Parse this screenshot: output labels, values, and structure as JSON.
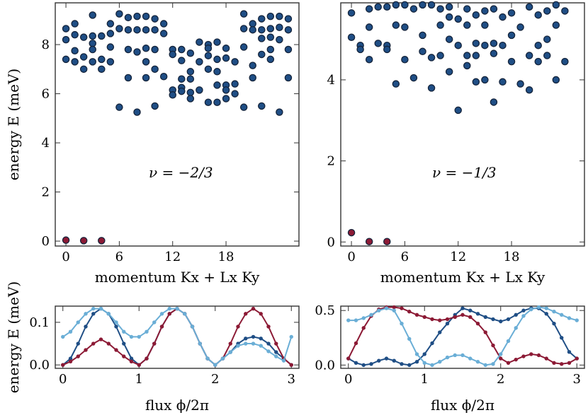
{
  "colors": {
    "blue": "#1f4e85",
    "red": "#8c1a35",
    "light": "#6aaed6",
    "edge": "#14233a"
  },
  "labels": {
    "ylabel_top": "energy E (meV)",
    "ylabel_bottom": "energy E (meV)",
    "xlabel_momentum": "momentum Kx + Lx Ky",
    "xlabel_flux": "flux ϕ/2π",
    "nu_left": "ν = −2/3",
    "nu_right": "ν = −1/3"
  },
  "chart_data": [
    {
      "type": "scatter",
      "panel": "top-left",
      "xlabel": "momentum Kx + Lx Ky",
      "ylabel": "energy E (meV)",
      "annotation": "ν = −2/3",
      "xlim": [
        -1,
        24
      ],
      "ylim": [
        -0.2,
        9.7
      ],
      "xticks": [
        0,
        6,
        12,
        18
      ],
      "yticks": [
        0,
        2,
        4,
        6,
        8
      ],
      "series": [
        {
          "color": "red",
          "points": [
            [
              0,
              0.04
            ],
            [
              2,
              0.02
            ],
            [
              4,
              0.02
            ]
          ]
        },
        {
          "color": "blue",
          "points": [
            [
              0,
              8.65
            ],
            [
              0,
              8.2
            ],
            [
              0,
              7.4
            ],
            [
              1,
              8.85
            ],
            [
              1,
              8.4
            ],
            [
              1,
              7.75
            ],
            [
              1,
              7.3
            ],
            [
              2,
              8.3
            ],
            [
              2,
              7.5
            ],
            [
              2,
              7.0
            ],
            [
              3,
              9.2
            ],
            [
              3,
              8.35
            ],
            [
              3,
              8.05
            ],
            [
              3,
              7.8
            ],
            [
              3,
              7.3
            ],
            [
              4,
              8.35
            ],
            [
              4,
              7.4
            ],
            [
              4,
              7.0
            ],
            [
              5,
              8.85
            ],
            [
              5,
              8.45
            ],
            [
              5,
              7.9
            ],
            [
              5,
              7.3
            ],
            [
              6,
              9.25
            ],
            [
              6,
              8.65
            ],
            [
              6,
              5.45
            ],
            [
              7,
              9.1
            ],
            [
              7,
              8.6
            ],
            [
              7,
              7.8
            ],
            [
              7,
              6.65
            ],
            [
              8,
              9.15
            ],
            [
              8,
              8.6
            ],
            [
              8,
              7.7
            ],
            [
              8,
              5.25
            ],
            [
              9,
              9.15
            ],
            [
              9,
              8.6
            ],
            [
              9,
              7.85
            ],
            [
              9,
              7.3
            ],
            [
              9,
              6.65
            ],
            [
              10,
              9.05
            ],
            [
              10,
              8.6
            ],
            [
              10,
              7.8
            ],
            [
              10,
              7.0
            ],
            [
              10,
              5.5
            ],
            [
              11,
              8.85
            ],
            [
              11,
              8.45
            ],
            [
              11,
              6.7
            ],
            [
              12,
              7.8
            ],
            [
              12,
              7.6
            ],
            [
              12,
              6.15
            ],
            [
              12,
              5.95
            ],
            [
              13,
              7.8
            ],
            [
              13,
              7.35
            ],
            [
              13,
              6.6
            ],
            [
              13,
              6.25
            ],
            [
              13,
              6.1
            ],
            [
              14,
              7.65
            ],
            [
              14,
              6.9
            ],
            [
              14,
              6.6
            ],
            [
              14,
              6.05
            ],
            [
              14,
              5.8
            ],
            [
              15,
              8.1
            ],
            [
              15,
              7.3
            ],
            [
              15,
              6.15
            ],
            [
              16,
              8.0
            ],
            [
              16,
              7.85
            ],
            [
              16,
              7.55
            ],
            [
              16,
              7.0
            ],
            [
              16,
              5.65
            ],
            [
              17,
              8.1
            ],
            [
              17,
              7.4
            ],
            [
              17,
              6.9
            ],
            [
              17,
              6.35
            ],
            [
              17,
              5.65
            ],
            [
              18,
              7.85
            ],
            [
              18,
              7.45
            ],
            [
              18,
              6.35
            ],
            [
              18,
              6.15
            ],
            [
              18,
              5.8
            ],
            [
              19,
              7.3
            ],
            [
              19,
              6.4
            ],
            [
              19,
              6.0
            ],
            [
              20,
              9.25
            ],
            [
              20,
              8.65
            ],
            [
              20,
              7.9
            ],
            [
              20,
              5.45
            ],
            [
              21,
              8.85
            ],
            [
              21,
              8.6
            ],
            [
              21,
              7.15
            ],
            [
              21,
              6.65
            ],
            [
              22,
              9.05
            ],
            [
              22,
              8.6
            ],
            [
              22,
              8.25
            ],
            [
              22,
              7.6
            ],
            [
              22,
              5.5
            ],
            [
              23,
              9.15
            ],
            [
              23,
              8.65
            ],
            [
              23,
              8.3
            ],
            [
              23,
              7.8
            ],
            [
              23,
              7.4
            ],
            [
              24,
              9.15
            ],
            [
              24,
              8.7
            ],
            [
              24,
              8.2
            ],
            [
              24,
              5.25
            ],
            [
              25,
              9.05
            ],
            [
              25,
              8.6
            ],
            [
              25,
              7.8
            ],
            [
              25,
              6.65
            ]
          ]
        }
      ]
    },
    {
      "type": "scatter",
      "panel": "top-right",
      "xlabel": "momentum Kx + Lx Ky",
      "annotation": "ν = −1/3",
      "xlim": [
        -1,
        24
      ],
      "ylim": [
        -0.1,
        5.9
      ],
      "xticks": [
        0,
        6,
        12,
        18
      ],
      "yticks": [
        0,
        2,
        4
      ],
      "series": [
        {
          "color": "red",
          "points": [
            [
              0,
              0.23
            ],
            [
              2,
              0.01
            ],
            [
              4,
              0.01
            ]
          ]
        },
        {
          "color": "blue",
          "points": [
            [
              0,
              5.65
            ],
            [
              0,
              5.05
            ],
            [
              1,
              4.85
            ],
            [
              1,
              4.75
            ],
            [
              2,
              5.75
            ],
            [
              2,
              5.3
            ],
            [
              2,
              4.5
            ],
            [
              3,
              5.8
            ],
            [
              3,
              4.9
            ],
            [
              4,
              5.8
            ],
            [
              4,
              4.85
            ],
            [
              4,
              4.75
            ],
            [
              5,
              5.85
            ],
            [
              5,
              5.35
            ],
            [
              5,
              3.9
            ],
            [
              6,
              5.85
            ],
            [
              6,
              5.3
            ],
            [
              6,
              4.5
            ],
            [
              7,
              5.75
            ],
            [
              7,
              4.05
            ],
            [
              8,
              5.85
            ],
            [
              8,
              5.1
            ],
            [
              8,
              4.7
            ],
            [
              9,
              5.85
            ],
            [
              9,
              4.55
            ],
            [
              9,
              3.8
            ],
            [
              10,
              5.75
            ],
            [
              10,
              5.35
            ],
            [
              10,
              4.6
            ],
            [
              11,
              5.8
            ],
            [
              11,
              5.55
            ],
            [
              11,
              5.0
            ],
            [
              11,
              4.2
            ],
            [
              12,
              5.5
            ],
            [
              12,
              4.85
            ],
            [
              12,
              3.25
            ],
            [
              13,
              5.75
            ],
            [
              13,
              5.35
            ],
            [
              13,
              4.6
            ],
            [
              13,
              4.35
            ],
            [
              14,
              5.6
            ],
            [
              14,
              4.9
            ],
            [
              14,
              4.6
            ],
            [
              14,
              3.95
            ],
            [
              15,
              5.7
            ],
            [
              15,
              5.35
            ],
            [
              15,
              4.85
            ],
            [
              15,
              4.0
            ],
            [
              16,
              5.75
            ],
            [
              16,
              4.9
            ],
            [
              16,
              4.65
            ],
            [
              16,
              3.45
            ],
            [
              17,
              5.55
            ],
            [
              17,
              4.85
            ],
            [
              17,
              3.95
            ],
            [
              18,
              5.65
            ],
            [
              18,
              5.1
            ],
            [
              18,
              4.45
            ],
            [
              19,
              5.3
            ],
            [
              19,
              3.9
            ],
            [
              20,
              5.8
            ],
            [
              20,
              4.6
            ],
            [
              20,
              3.75
            ],
            [
              21,
              5.6
            ],
            [
              21,
              4.85
            ],
            [
              21,
              4.45
            ],
            [
              22,
              5.7
            ],
            [
              22,
              5.0
            ],
            [
              22,
              4.6
            ],
            [
              23,
              5.85
            ],
            [
              23,
              5.35
            ],
            [
              23,
              4.0
            ],
            [
              24,
              5.7
            ],
            [
              24,
              4.45
            ]
          ]
        }
      ]
    },
    {
      "type": "line",
      "panel": "bottom-left",
      "xlabel": "flux ϕ/2π",
      "ylabel": "energy E (meV)",
      "xlim": [
        -0.1,
        3.1
      ],
      "ylim": [
        -0.008,
        0.138
      ],
      "xticks": [
        0,
        1,
        2,
        3
      ],
      "yticks": [
        0.0,
        0.1
      ],
      "ytick_labels": [
        "0.0",
        "0.1"
      ],
      "x": [
        0,
        0.1,
        0.2,
        0.3,
        0.4,
        0.5,
        0.6,
        0.7,
        0.8,
        0.9,
        1,
        1.1,
        1.2,
        1.3,
        1.4,
        1.5,
        1.6,
        1.7,
        1.8,
        1.9,
        2,
        2.1,
        2.2,
        2.3,
        2.4,
        2.5,
        2.6,
        2.7,
        2.8,
        2.9,
        3
      ],
      "series": [
        {
          "color": "blue",
          "values": [
            0,
            0.015,
            0.05,
            0.09,
            0.12,
            0.132,
            0.12,
            0.09,
            0.05,
            0.015,
            0,
            0.015,
            0.05,
            0.09,
            0.12,
            0.132,
            0.12,
            0.09,
            0.05,
            0.015,
            0,
            0.015,
            0.03,
            0.05,
            0.062,
            0.066,
            0.062,
            0.05,
            0.03,
            0.015,
            0
          ]
        },
        {
          "color": "red",
          "values": [
            0,
            0.008,
            0.02,
            0.035,
            0.05,
            0.06,
            0.05,
            0.035,
            0.02,
            0.008,
            0,
            0.015,
            0.05,
            0.09,
            0.12,
            0.132,
            0.12,
            0.09,
            0.05,
            0.015,
            0,
            0.015,
            0.05,
            0.09,
            0.12,
            0.132,
            0.12,
            0.09,
            0.05,
            0.015,
            0
          ]
        },
        {
          "color": "light",
          "values": [
            0.066,
            0.078,
            0.1,
            0.12,
            0.132,
            0.132,
            0.12,
            0.1,
            0.078,
            0.066,
            0.066,
            0.078,
            0.1,
            0.12,
            0.132,
            0.132,
            0.12,
            0.09,
            0.05,
            0.015,
            0,
            0.015,
            0.03,
            0.045,
            0.05,
            0.05,
            0.045,
            0.032,
            0.02,
            0.01,
            0.066
          ]
        }
      ]
    },
    {
      "type": "line",
      "panel": "bottom-right",
      "xlabel": "flux ϕ/2π",
      "xlim": [
        -0.1,
        3.1
      ],
      "ylim": [
        -0.03,
        0.54
      ],
      "xticks": [
        0,
        1,
        2,
        3
      ],
      "yticks": [
        0.0,
        0.5
      ],
      "ytick_labels": [
        "0.0",
        "0.5"
      ],
      "x": [
        0,
        0.1,
        0.2,
        0.3,
        0.4,
        0.5,
        0.6,
        0.7,
        0.8,
        0.9,
        1,
        1.1,
        1.2,
        1.3,
        1.4,
        1.5,
        1.6,
        1.7,
        1.8,
        1.9,
        2,
        2.1,
        2.2,
        2.3,
        2.4,
        2.5,
        2.6,
        2.7,
        2.8,
        2.9,
        3
      ],
      "series": [
        {
          "color": "blue",
          "values": [
            0.06,
            0.02,
            0.0,
            0.01,
            0.04,
            0.06,
            0.04,
            0.01,
            0.0,
            0.03,
            0.1,
            0.2,
            0.3,
            0.38,
            0.46,
            0.52,
            0.5,
            0.47,
            0.44,
            0.42,
            0.4,
            0.42,
            0.46,
            0.5,
            0.52,
            0.52,
            0.47,
            0.38,
            0.25,
            0.12,
            0.06
          ]
        },
        {
          "color": "red",
          "values": [
            0.06,
            0.2,
            0.34,
            0.45,
            0.51,
            0.53,
            0.53,
            0.52,
            0.49,
            0.46,
            0.44,
            0.42,
            0.41,
            0.42,
            0.44,
            0.46,
            0.44,
            0.38,
            0.3,
            0.18,
            0.06,
            0.02,
            0.05,
            0.08,
            0.1,
            0.09,
            0.06,
            0.02,
            0.01,
            0.02,
            0.06
          ]
        },
        {
          "color": "light",
          "values": [
            0.41,
            0.41,
            0.43,
            0.46,
            0.5,
            0.52,
            0.5,
            0.38,
            0.24,
            0.1,
            0.02,
            0.0,
            0.03,
            0.07,
            0.09,
            0.09,
            0.06,
            0.03,
            0.0,
            0.01,
            0.1,
            0.22,
            0.34,
            0.45,
            0.51,
            0.53,
            0.52,
            0.49,
            0.46,
            0.43,
            0.41
          ]
        }
      ]
    }
  ]
}
